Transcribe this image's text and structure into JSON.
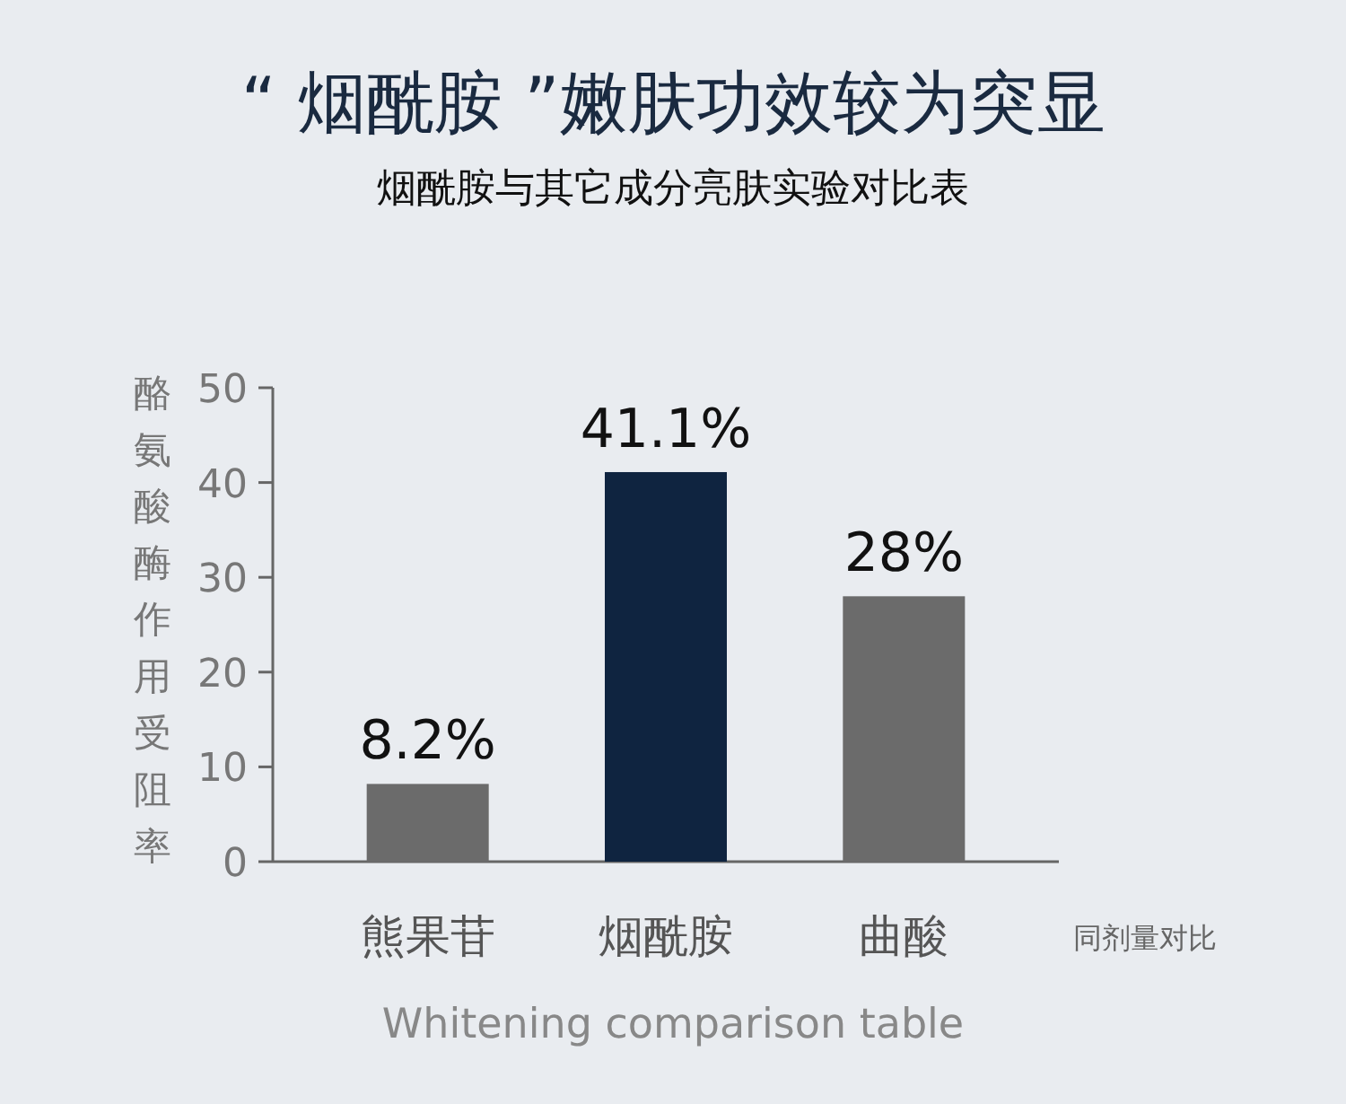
{
  "chart_data": {
    "type": "bar",
    "title": "“ 烟酰胺 ”嫩肤功效较为突显",
    "subtitle": "烟酰胺与其它成分亮肤实验对比表",
    "ylabel": "酪氨酸酶作用受阻率",
    "categories": [
      "熊果苷",
      "烟酰胺",
      "曲酸"
    ],
    "values": [
      8.2,
      41.1,
      28
    ],
    "colors": [
      "#6b6b6b",
      "#0f2440",
      "#6b6b6b"
    ],
    "value_labels": [
      "8.2%",
      "41.1%",
      "28%"
    ],
    "ylim": [
      0,
      50
    ],
    "yticks": [
      0,
      10,
      20,
      30,
      40,
      50
    ],
    "annotations": [
      "同剂量对比",
      "Whitening comparison table"
    ]
  }
}
